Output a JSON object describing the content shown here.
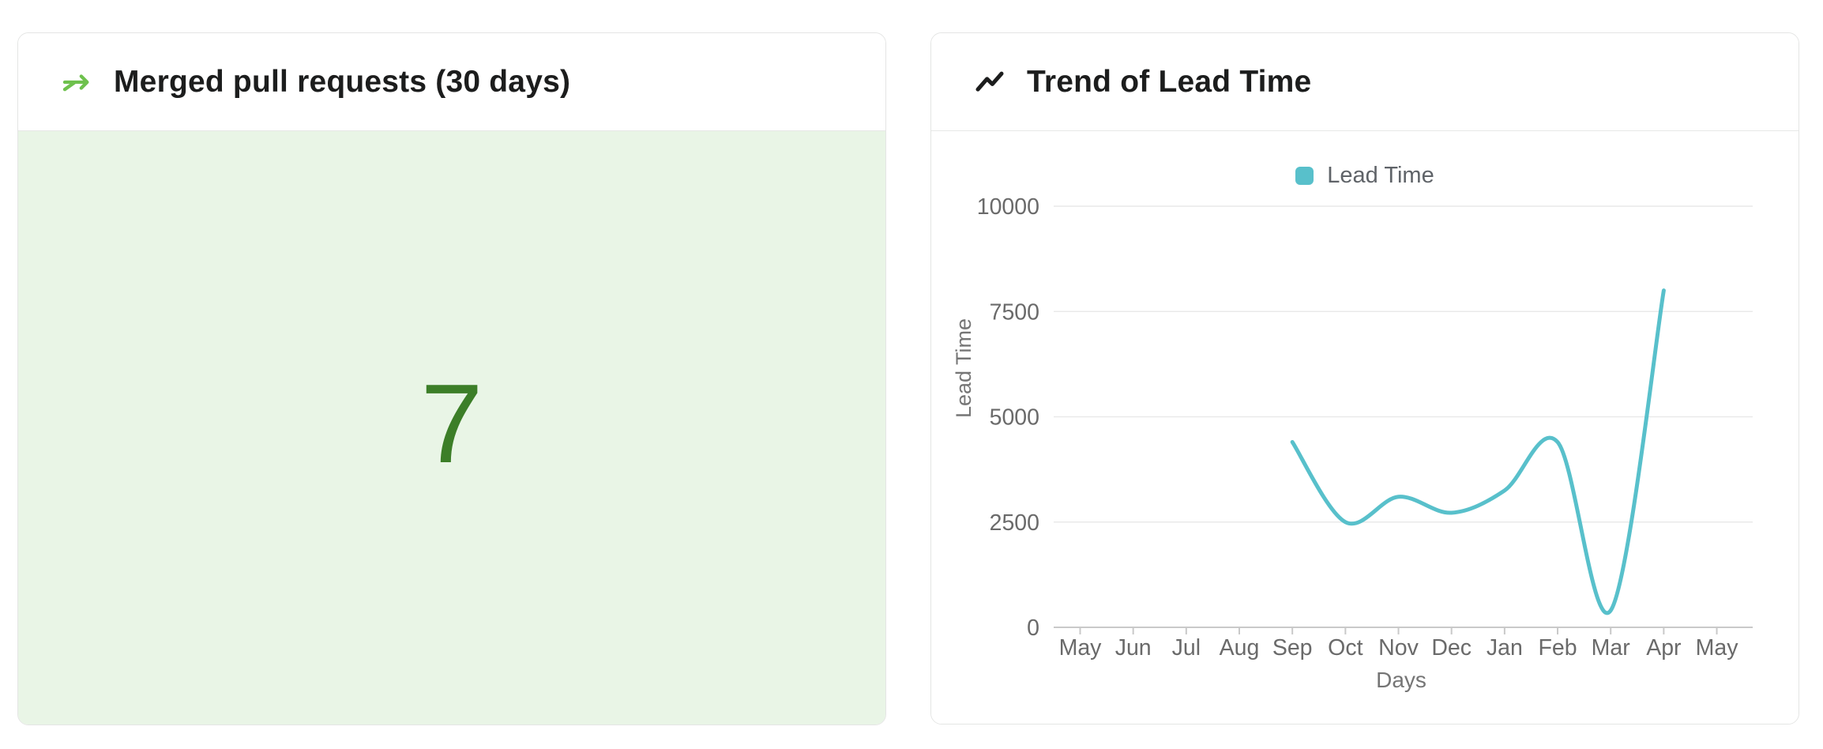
{
  "cards": {
    "merged_pr": {
      "title": "Merged pull requests (30 days)",
      "value": "7",
      "value_color": "#3c7e28",
      "body_bg_color": "#e9f5e6",
      "icon": "merge-arrow-icon",
      "icon_color": "#6ec14d"
    },
    "lead_time": {
      "title": "Trend of Lead Time",
      "icon": "trending-up-icon",
      "icon_color": "#1c1d1d"
    }
  },
  "chart_data": {
    "type": "line",
    "title": "Trend of Lead Time",
    "legend": [
      "Lead Time"
    ],
    "legend_position": "top",
    "xlabel": "Days",
    "ylabel": "Lead Time",
    "categories": [
      "May",
      "Jun",
      "Jul",
      "Aug",
      "Sep",
      "Oct",
      "Nov",
      "Dec",
      "Jan",
      "Feb",
      "Mar",
      "Apr",
      "May"
    ],
    "yticks": [
      0,
      2500,
      5000,
      7500,
      10000
    ],
    "ylim": [
      0,
      10000
    ],
    "grid": true,
    "smooth": true,
    "series": [
      {
        "name": "Lead Time",
        "color": "#58c0cb",
        "points": [
          {
            "x": "Sep",
            "y": 4400
          },
          {
            "x": "Oct",
            "y": 2500
          },
          {
            "x": "Nov",
            "y": 3100
          },
          {
            "x": "Dec",
            "y": 2720
          },
          {
            "x": "Jan",
            "y": 3250
          },
          {
            "x": "Feb",
            "y": 4400
          },
          {
            "x": "Mar",
            "y": 400
          },
          {
            "x": "Apr",
            "y": 8000
          }
        ]
      }
    ],
    "colors": {
      "grid_line": "#e9e9e9",
      "axis_line": "#c9c9c9",
      "tick_text": "#6a6a6a",
      "axis_title_text": "#757575"
    }
  }
}
